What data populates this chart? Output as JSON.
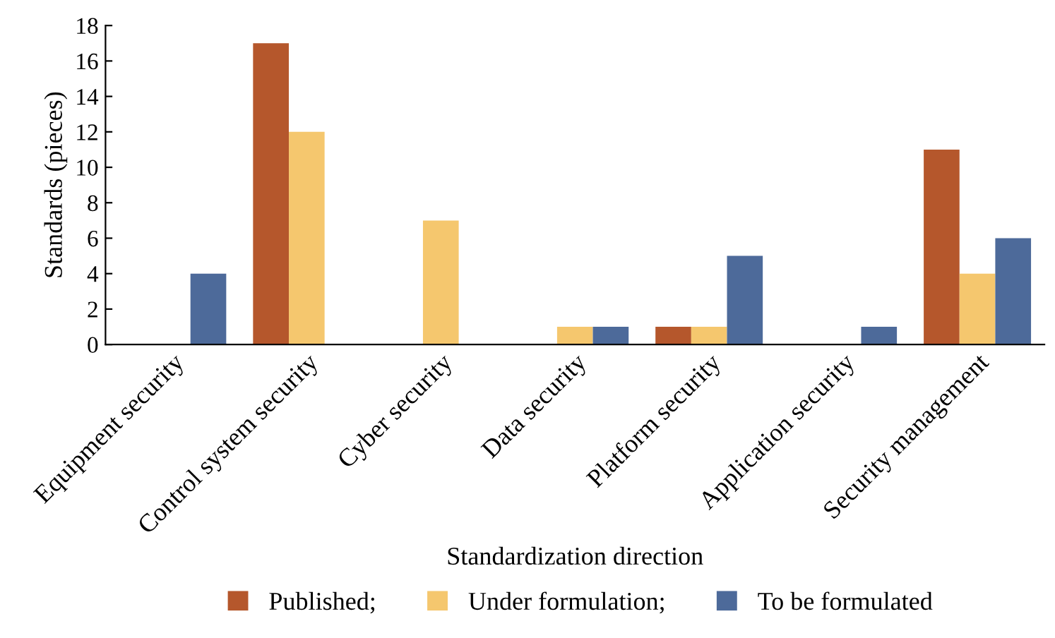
{
  "chart_data": {
    "type": "bar",
    "xlabel": "Standardization direction",
    "ylabel": "Standards (pieces)",
    "categories": [
      "Equipment security",
      "Control system security",
      "Cyber security",
      "Data security",
      "Platform security",
      "Application security",
      "Security management"
    ],
    "series": [
      {
        "name": "Published;",
        "color": "#b5572c",
        "values": [
          0,
          17,
          0,
          0,
          1,
          0,
          11
        ]
      },
      {
        "name": "Under formulation;",
        "color": "#f5c76e",
        "values": [
          0,
          12,
          7,
          1,
          1,
          0,
          4
        ]
      },
      {
        "name": "To be formulated",
        "color": "#4d6a9a",
        "values": [
          4,
          0,
          0,
          1,
          5,
          1,
          6
        ]
      }
    ],
    "ylim": [
      0,
      18
    ],
    "yticks": [
      0,
      2,
      4,
      6,
      8,
      10,
      12,
      14,
      16,
      18
    ],
    "grid": false,
    "legend": "bottom"
  }
}
